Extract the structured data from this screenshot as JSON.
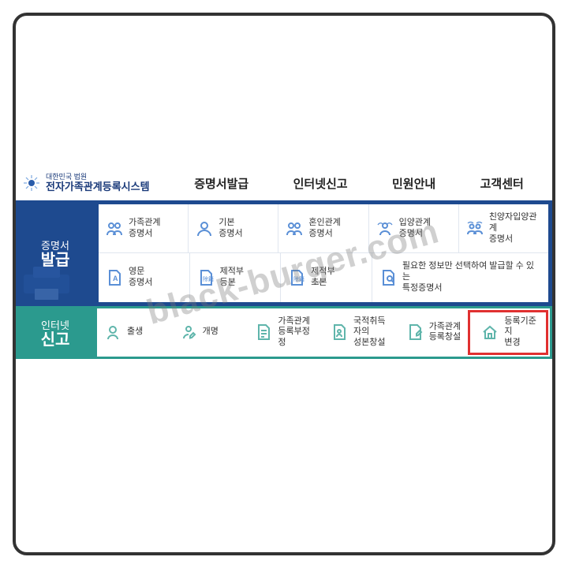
{
  "colors": {
    "frame": "#333333",
    "blue": "#1e4a8f",
    "teal": "#2b9a8e",
    "highlight": "#e03030",
    "icon_blue": "#5a8fd6",
    "icon_teal": "#5fb5ab"
  },
  "logo": {
    "supertitle": "대한민국 법원",
    "title": "전자가족관계등록시스템"
  },
  "nav": {
    "items": [
      "증명서발급",
      "인터넷신고",
      "민원안내",
      "고객센터"
    ]
  },
  "section_cert": {
    "label_top": "증명서",
    "label_main": "발급",
    "row1": [
      {
        "label": "가족관계\n증명서"
      },
      {
        "label": "기본\n증명서"
      },
      {
        "label": "혼인관계\n증명서"
      },
      {
        "label": "입양관계\n증명서"
      },
      {
        "label": "친양자입양관계\n증명서"
      }
    ],
    "row2": [
      {
        "label": "영문\n증명서"
      },
      {
        "label": "제적부\n등본"
      },
      {
        "label": "제적부\n초본"
      },
      {
        "label": "필요한 정보만 선택하여 발급할 수 있는\n특정증명서",
        "wide": true
      }
    ]
  },
  "section_report": {
    "label_top": "인터넷",
    "label_main": "신고",
    "items": [
      {
        "label": "출생"
      },
      {
        "label": "개명"
      },
      {
        "label": "가족관계\n등록부정정"
      },
      {
        "label": "국적취득자의\n성본창설"
      },
      {
        "label": "가족관계\n등록창설"
      },
      {
        "label": "등록기준지\n변경",
        "highlight": true
      }
    ]
  },
  "watermark": "black-burger.com"
}
